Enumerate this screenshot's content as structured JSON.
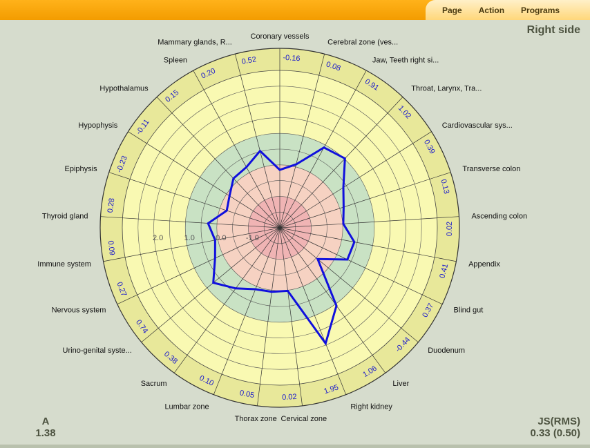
{
  "menu": {
    "items": [
      "Page",
      "Action",
      "Programs"
    ]
  },
  "header": {
    "title": "Right side"
  },
  "stats": {
    "left": {
      "label": "A",
      "value": "1.38"
    },
    "right": {
      "label": "JS(RMS)",
      "value": "0.33 (0.50)"
    }
  },
  "colors": {
    "series": "#1010dd",
    "accent": "#f39c00"
  },
  "chart_data": {
    "type": "radar",
    "title": "Right side",
    "axes": [
      {
        "label": "Coronary vessels",
        "value": "-0.16"
      },
      {
        "label": "Cerebral zone (ves...",
        "value": "0.08"
      },
      {
        "label": "Jaw, Teeth right si...",
        "value": "0.91"
      },
      {
        "label": "Throat, Larynx, Tra...",
        "value": "1.02"
      },
      {
        "label": "Cardiovascular sys...",
        "value": "0.39"
      },
      {
        "label": "Transverse colon",
        "value": "0.13"
      },
      {
        "label": "Ascending colon",
        "value": "0.02"
      },
      {
        "label": "Appendix",
        "value": "0.41"
      },
      {
        "label": "Blind gut",
        "value": "0.37"
      },
      {
        "label": "Duodenum",
        "value": "-0.44"
      },
      {
        "label": "Liver",
        "value": "1.06"
      },
      {
        "label": "Right kidney",
        "value": "1.95"
      },
      {
        "label": "Cervical zone",
        "value": "0.02"
      },
      {
        "label": "Thorax zone",
        "value": "0.05"
      },
      {
        "label": "Lumbar zone",
        "value": "0.10"
      },
      {
        "label": "Sacrum",
        "value": "0.38"
      },
      {
        "label": "Urino-genital syste...",
        "value": "0.74"
      },
      {
        "label": "Nervous system",
        "value": "0.27"
      },
      {
        "label": "Immune system",
        "value": "0.09"
      },
      {
        "label": "Thyroid gland",
        "value": "0.28"
      },
      {
        "label": "Epiphysis",
        "value": "-0.23"
      },
      {
        "label": "Hypophysis",
        "value": "-0.11"
      },
      {
        "label": "Hypothalamus",
        "value": "0.15"
      },
      {
        "label": "Spleen",
        "value": "0.20"
      },
      {
        "label": "Mammary glands, R...",
        "value": "0.52"
      }
    ],
    "ring_labels": [
      "2.0",
      "1.0",
      "0.0",
      "-1.0"
    ],
    "rlim": [
      -2,
      3
    ]
  }
}
